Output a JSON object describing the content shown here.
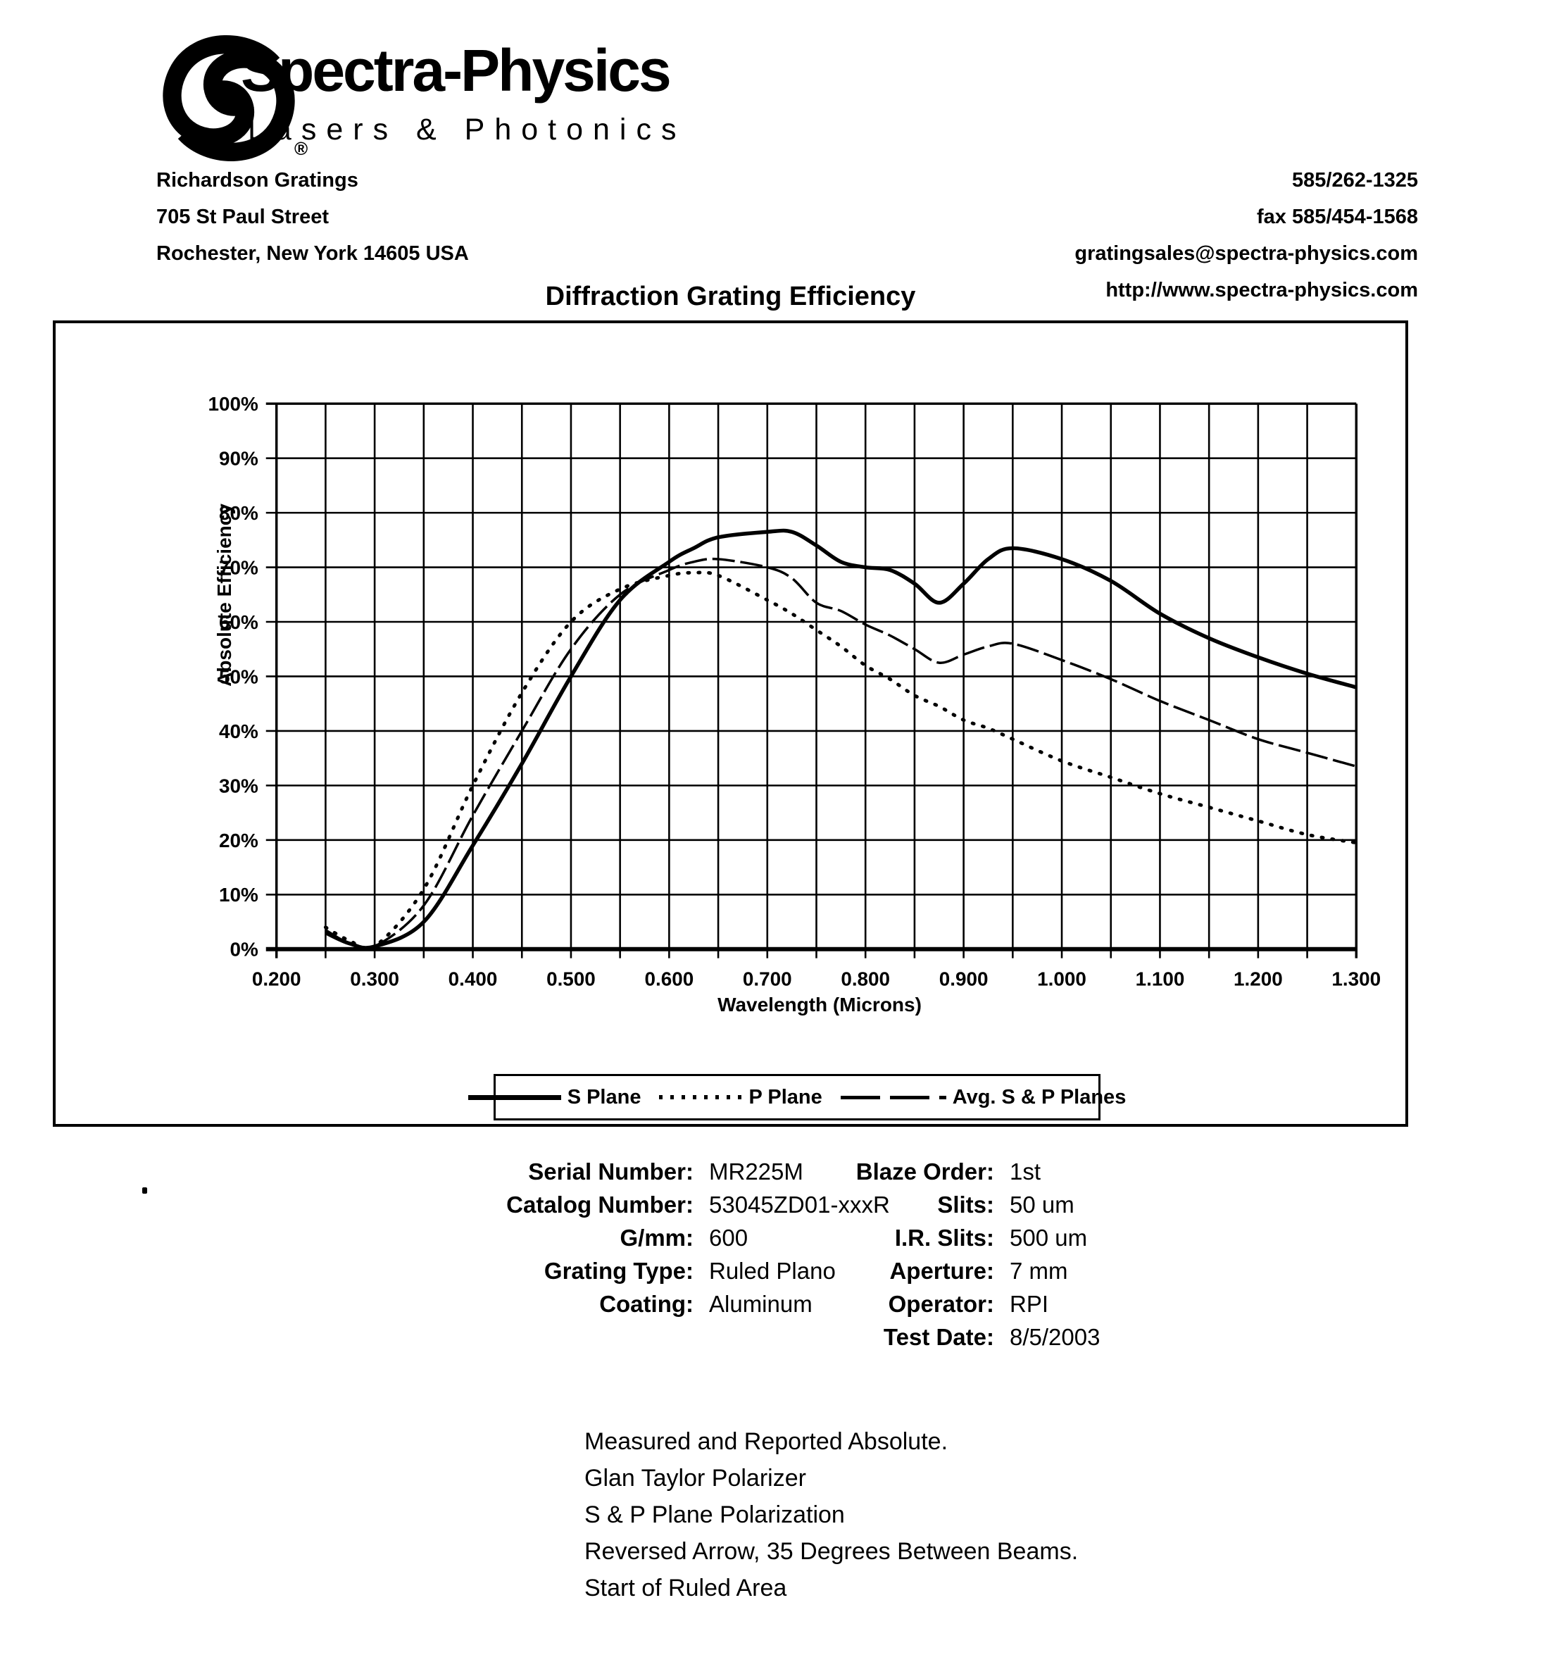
{
  "header": {
    "brand": "Spectra-Physics",
    "tagline": "Lasers & Photonics",
    "registered": "®",
    "address_lines": [
      "Richardson Gratings",
      "705 St Paul Street",
      "Rochester, New York  14605  USA"
    ],
    "contact_lines": [
      "585/262-1325",
      "fax  585/454-1568",
      "gratingsales@spectra-physics.com",
      "http://www.spectra-physics.com"
    ]
  },
  "chart": {
    "title": "Diffraction Grating Efficiency"
  },
  "chart_data": {
    "type": "line",
    "title": "Diffraction Grating Efficiency",
    "xlabel": "Wavelength (Microns)",
    "ylabel": "Absolute Efficiency",
    "xlim": [
      0.2,
      1.3
    ],
    "ylim": [
      0,
      100
    ],
    "grid": true,
    "x_grid_step": 0.05,
    "y_grid_step": 10,
    "legend_position": "bottom",
    "x_tick_values": [
      0.2,
      0.3,
      0.4,
      0.5,
      0.6,
      0.7,
      0.8,
      0.9,
      1.0,
      1.1,
      1.2,
      1.3
    ],
    "x_tick_labels": [
      "0.200",
      "0.300",
      "0.400",
      "0.500",
      "0.600",
      "0.700",
      "0.800",
      "0.900",
      "1.000",
      "1.100",
      "1.200",
      "1.300"
    ],
    "y_tick_values": [
      0,
      10,
      20,
      30,
      40,
      50,
      60,
      70,
      80,
      90,
      100
    ],
    "y_tick_labels": [
      "0%",
      "10%",
      "20%",
      "30%",
      "40%",
      "50%",
      "60%",
      "70%",
      "80%",
      "90%",
      "100%"
    ],
    "x": [
      0.25,
      0.275,
      0.3,
      0.35,
      0.4,
      0.45,
      0.5,
      0.55,
      0.6,
      0.625,
      0.65,
      0.7,
      0.725,
      0.75,
      0.775,
      0.8,
      0.825,
      0.85,
      0.875,
      0.9,
      0.925,
      0.95,
      1.0,
      1.05,
      1.1,
      1.15,
      1.2,
      1.25,
      1.3
    ],
    "series": [
      {
        "name": "S Plane",
        "style": "solid",
        "values": [
          3,
          1,
          0.5,
          5,
          19,
          34,
          50,
          64,
          71,
          73.5,
          75.5,
          76.5,
          76.5,
          74,
          71,
          70,
          69.5,
          67,
          63.5,
          67,
          71.5,
          73.5,
          71.5,
          67.5,
          61.5,
          57,
          53.5,
          50.5,
          48
        ]
      },
      {
        "name": "P Plane",
        "style": "dotted",
        "values": [
          4,
          1.5,
          0.5,
          11,
          30,
          47,
          60,
          66,
          68.5,
          69,
          68.5,
          64,
          61.5,
          58.5,
          55.5,
          52,
          49.5,
          46.5,
          44.5,
          42,
          40.5,
          38.5,
          34.5,
          31.5,
          28.5,
          26,
          23.5,
          21,
          19.5
        ]
      },
      {
        "name": "Avg. S & P Planes",
        "style": "dashed",
        "values": [
          3.5,
          1,
          0.5,
          8,
          24.5,
          40,
          55,
          65,
          69.5,
          71,
          71.5,
          70,
          68,
          63.5,
          62,
          59.5,
          57.5,
          55,
          52.5,
          54,
          55.5,
          56,
          53,
          49.5,
          45.5,
          42,
          38.5,
          36,
          33.5
        ]
      }
    ]
  },
  "specs": {
    "left": [
      {
        "label": "Serial Number:",
        "value": "MR225M"
      },
      {
        "label": "Catalog Number:",
        "value": "53045ZD01-xxxR"
      },
      {
        "label": "G/mm:",
        "value": "600"
      },
      {
        "label": "Grating Type:",
        "value": "Ruled Plano"
      },
      {
        "label": "Coating:",
        "value": "Aluminum"
      }
    ],
    "right": [
      {
        "label": "Blaze Order:",
        "value": "1st"
      },
      {
        "label": "Slits:",
        "value": "50 um"
      },
      {
        "label": "I.R. Slits:",
        "value": "500 um"
      },
      {
        "label": "Aperture:",
        "value": "7 mm"
      },
      {
        "label": "Operator:",
        "value": "RPI"
      },
      {
        "label": "Test Date:",
        "value": "8/5/2003"
      }
    ]
  },
  "notes": [
    "Measured and Reported Absolute.",
    "Glan Taylor Polarizer",
    "S & P Plane Polarization",
    "Reversed Arrow, 35 Degrees Between Beams.",
    "Start of Ruled Area"
  ]
}
